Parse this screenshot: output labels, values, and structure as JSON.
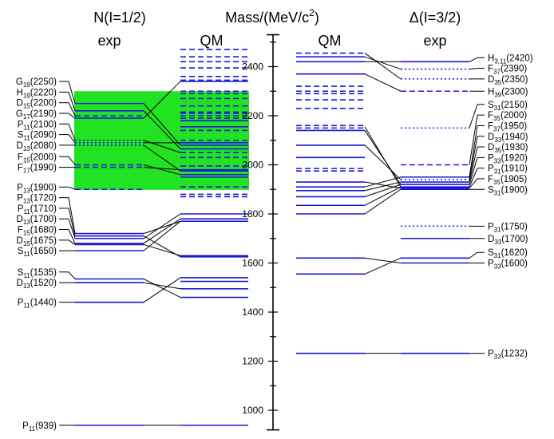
{
  "header": {
    "nucleon": "N(I=1/2)",
    "mass_prefix": "Mass/(MeV/c",
    "mass_exp": "2",
    "mass_suffix": ")",
    "delta": "Δ(I=3/2)",
    "exp_label": "exp",
    "qm_label": "QM"
  },
  "axis": {
    "unit": "MeV/c2",
    "range": [
      920,
      2530
    ],
    "major_ticks": [
      1000,
      1200,
      1400,
      1600,
      1800,
      2000,
      2200,
      2400
    ],
    "minor_step": 100,
    "tick_labels": [
      "1000",
      "1200",
      "1400",
      "1600",
      "1800",
      "2000",
      "2200",
      "2400"
    ]
  },
  "colors": {
    "level": "#1a1ad6",
    "highlight": "#22e322",
    "connector": "#000000"
  },
  "highlight_band": {
    "from": 1898,
    "to": 2300
  },
  "nucleon_states": [
    {
      "id": "n939",
      "wave": "P",
      "sub": "11",
      "mass": 939,
      "mass_label": "(939)",
      "style": "solid"
    },
    {
      "id": "n1440",
      "wave": "P",
      "sub": "11",
      "mass": 1440,
      "mass_label": "(1440)",
      "style": "solid"
    },
    {
      "id": "n1520",
      "wave": "D",
      "sub": "13",
      "mass": 1520,
      "mass_label": "(1520)",
      "style": "solid"
    },
    {
      "id": "n1535",
      "wave": "S",
      "sub": "11",
      "mass": 1535,
      "mass_label": "(1535)",
      "style": "solid"
    },
    {
      "id": "n1650",
      "wave": "S",
      "sub": "11",
      "mass": 1650,
      "mass_label": "(1650)",
      "style": "solid"
    },
    {
      "id": "n1675",
      "wave": "D",
      "sub": "15",
      "mass": 1675,
      "mass_label": "(1675)",
      "style": "solid"
    },
    {
      "id": "n1680",
      "wave": "F",
      "sub": "15",
      "mass": 1680,
      "mass_label": "(1680)",
      "style": "solid"
    },
    {
      "id": "n1700",
      "wave": "D",
      "sub": "13",
      "mass": 1700,
      "mass_label": "(1700)",
      "style": "solid"
    },
    {
      "id": "n1710",
      "wave": "P",
      "sub": "11",
      "mass": 1710,
      "mass_label": "(1710)",
      "style": "solid"
    },
    {
      "id": "n1720",
      "wave": "P",
      "sub": "13",
      "mass": 1720,
      "mass_label": "(1720)",
      "style": "solid"
    },
    {
      "id": "n1900",
      "wave": "P",
      "sub": "13",
      "mass": 1900,
      "mass_label": "(1900)",
      "style": "dashed"
    },
    {
      "id": "n1990",
      "wave": "F",
      "sub": "17",
      "mass": 1990,
      "mass_label": "(1990)",
      "style": "dashed"
    },
    {
      "id": "n2000",
      "wave": "F",
      "sub": "15",
      "mass": 2000,
      "mass_label": "(2000)",
      "style": "dashed"
    },
    {
      "id": "n2080",
      "wave": "D",
      "sub": "13",
      "mass": 2080,
      "mass_label": "(2080)",
      "style": "dotted"
    },
    {
      "id": "n2090",
      "wave": "S",
      "sub": "11",
      "mass": 2090,
      "mass_label": "(2090)",
      "style": "dotted"
    },
    {
      "id": "n2100",
      "wave": "P",
      "sub": "11",
      "mass": 2100,
      "mass_label": "(2100)",
      "style": "dotted"
    },
    {
      "id": "n2190",
      "wave": "G",
      "sub": "17",
      "mass": 2190,
      "mass_label": "(2190)",
      "style": "solid"
    },
    {
      "id": "n2200",
      "wave": "D",
      "sub": "15",
      "mass": 2200,
      "mass_label": "(2200)",
      "style": "dashed"
    },
    {
      "id": "n2220",
      "wave": "H",
      "sub": "19",
      "mass": 2220,
      "mass_label": "(2220)",
      "style": "solid"
    },
    {
      "id": "n2250",
      "wave": "G",
      "sub": "19",
      "mass": 2250,
      "mass_label": "(2250)",
      "style": "solid"
    }
  ],
  "nucleon_qm": [
    {
      "mass": 939,
      "style": "solid"
    },
    {
      "mass": 1460,
      "style": "solid"
    },
    {
      "mass": 1495,
      "style": "solid"
    },
    {
      "mass": 1525,
      "style": "solid"
    },
    {
      "mass": 1540,
      "style": "solid"
    },
    {
      "mass": 1625,
      "style": "solid"
    },
    {
      "mass": 1630,
      "style": "solid"
    },
    {
      "mass": 1770,
      "style": "solid"
    },
    {
      "mass": 1780,
      "style": "solid"
    },
    {
      "mass": 1800,
      "style": "solid"
    },
    {
      "mass": 1870,
      "style": "dashed"
    },
    {
      "mass": 1880,
      "style": "dashed"
    },
    {
      "mass": 1910,
      "style": "dashed"
    },
    {
      "mass": 1950,
      "style": "solid"
    },
    {
      "mass": 1960,
      "style": "solid"
    },
    {
      "mass": 1975,
      "style": "solid"
    },
    {
      "mass": 1980,
      "style": "solid"
    },
    {
      "mass": 1995,
      "style": "dashed"
    },
    {
      "mass": 2030,
      "style": "dashed"
    },
    {
      "mass": 2050,
      "style": "dashed"
    },
    {
      "mass": 2065,
      "style": "solid"
    },
    {
      "mass": 2080,
      "style": "solid"
    },
    {
      "mass": 2090,
      "style": "solid"
    },
    {
      "mass": 2100,
      "style": "dashed"
    },
    {
      "mass": 2140,
      "style": "dashed"
    },
    {
      "mass": 2155,
      "style": "solid"
    },
    {
      "mass": 2180,
      "style": "solid"
    },
    {
      "mass": 2190,
      "style": "dashed"
    },
    {
      "mass": 2200,
      "style": "dashed"
    },
    {
      "mass": 2210,
      "style": "dashed"
    },
    {
      "mass": 2215,
      "style": "dashed"
    },
    {
      "mass": 2240,
      "style": "dashed"
    },
    {
      "mass": 2270,
      "style": "dashed"
    },
    {
      "mass": 2290,
      "style": "dashed"
    },
    {
      "mass": 2300,
      "style": "dashed"
    },
    {
      "mass": 2340,
      "style": "solid"
    },
    {
      "mass": 2345,
      "style": "dashed"
    },
    {
      "mass": 2360,
      "style": "dashed"
    },
    {
      "mass": 2395,
      "style": "dashed"
    },
    {
      "mass": 2420,
      "style": "dashed"
    },
    {
      "mass": 2440,
      "style": "dashed"
    },
    {
      "mass": 2470,
      "style": "dashed"
    }
  ],
  "nucleon_links": [
    [
      939,
      939
    ],
    [
      1440,
      1540
    ],
    [
      1520,
      1495
    ],
    [
      1535,
      1460
    ],
    [
      1650,
      1770
    ],
    [
      1675,
      1630
    ],
    [
      1680,
      1780
    ],
    [
      1700,
      1800
    ],
    [
      1710,
      1625
    ],
    [
      1720,
      1770
    ],
    [
      2190,
      2340
    ],
    [
      2220,
      2065
    ],
    [
      2250,
      2080
    ],
    [
      2100,
      2050
    ],
    [
      2090,
      2090
    ],
    [
      2080,
      1975
    ],
    [
      2000,
      1960
    ],
    [
      1990,
      1980
    ]
  ],
  "delta_qm": [
    {
      "mass": 1232,
      "style": "solid"
    },
    {
      "mass": 1555,
      "style": "solid"
    },
    {
      "mass": 1620,
      "style": "solid"
    },
    {
      "mass": 1800,
      "style": "solid"
    },
    {
      "mass": 1835,
      "style": "solid"
    },
    {
      "mass": 1870,
      "style": "solid"
    },
    {
      "mass": 1895,
      "style": "solid"
    },
    {
      "mass": 1910,
      "style": "solid"
    },
    {
      "mass": 1930,
      "style": "solid"
    },
    {
      "mass": 1975,
      "style": "dashed"
    },
    {
      "mass": 1985,
      "style": "dashed"
    },
    {
      "mass": 2030,
      "style": "solid"
    },
    {
      "mass": 2080,
      "style": "solid"
    },
    {
      "mass": 2140,
      "style": "solid"
    },
    {
      "mass": 2150,
      "style": "dashed"
    },
    {
      "mass": 2160,
      "style": "dashed"
    },
    {
      "mass": 2230,
      "style": "dashed"
    },
    {
      "mass": 2265,
      "style": "dashed"
    },
    {
      "mass": 2290,
      "style": "dashed"
    },
    {
      "mass": 2300,
      "style": "dashed"
    },
    {
      "mass": 2320,
      "style": "dashed"
    },
    {
      "mass": 2370,
      "style": "solid"
    },
    {
      "mass": 2420,
      "style": "solid"
    },
    {
      "mass": 2440,
      "style": "solid"
    },
    {
      "mass": 2455,
      "style": "dashed"
    }
  ],
  "delta_states": [
    {
      "id": "d1232",
      "wave": "P",
      "sub": "33",
      "mass": 1232,
      "mass_label": "(1232)",
      "style": "solid"
    },
    {
      "id": "d1600",
      "wave": "P",
      "sub": "33",
      "mass": 1600,
      "mass_label": "(1600)",
      "style": "solid"
    },
    {
      "id": "d1620",
      "wave": "S",
      "sub": "31",
      "mass": 1620,
      "mass_label": "(1620)",
      "style": "solid"
    },
    {
      "id": "d1700",
      "wave": "D",
      "sub": "33",
      "mass": 1700,
      "mass_label": "(1700)",
      "style": "solid"
    },
    {
      "id": "d1750",
      "wave": "P",
      "sub": "31",
      "mass": 1750,
      "mass_label": "(1750)",
      "style": "dotted"
    },
    {
      "id": "d1900",
      "wave": "S",
      "sub": "31",
      "mass": 1900,
      "mass_label": "(1900)",
      "style": "solid"
    },
    {
      "id": "d1905",
      "wave": "F",
      "sub": "35",
      "mass": 1905,
      "mass_label": "(1905)",
      "style": "solid"
    },
    {
      "id": "d1910",
      "wave": "P",
      "sub": "31",
      "mass": 1910,
      "mass_label": "(1910)",
      "style": "solid"
    },
    {
      "id": "d1920",
      "wave": "P",
      "sub": "33",
      "mass": 1920,
      "mass_label": "(1920)",
      "style": "solid"
    },
    {
      "id": "d1930",
      "wave": "D",
      "sub": "35",
      "mass": 1930,
      "mass_label": "(1930)",
      "style": "solid"
    },
    {
      "id": "d1940",
      "wave": "D",
      "sub": "33",
      "mass": 1940,
      "mass_label": "(1940)",
      "style": "dotted"
    },
    {
      "id": "d1950",
      "wave": "F",
      "sub": "37",
      "mass": 1950,
      "mass_label": "(1950)",
      "style": "solid"
    },
    {
      "id": "d2000",
      "wave": "F",
      "sub": "35",
      "mass": 2000,
      "mass_label": "(2000)",
      "style": "dashed"
    },
    {
      "id": "d2150",
      "wave": "S",
      "sub": "31",
      "mass": 2150,
      "mass_label": "(2150)",
      "style": "dotted"
    },
    {
      "id": "d2300",
      "wave": "H",
      "sub": "39",
      "mass": 2300,
      "mass_label": "(2300)",
      "style": "dashed"
    },
    {
      "id": "d2350",
      "wave": "D",
      "sub": "35",
      "mass": 2350,
      "mass_label": "(2350)",
      "style": "dotted"
    },
    {
      "id": "d2390",
      "wave": "F",
      "sub": "37",
      "mass": 2390,
      "mass_label": "(2390)",
      "style": "dotted"
    },
    {
      "id": "d2420",
      "wave": "H",
      "sub": "3,11",
      "mass": 2420,
      "mass_label": "(2420)",
      "style": "solid"
    }
  ],
  "delta_links": [
    [
      1232,
      1232
    ],
    [
      1555,
      1620
    ],
    [
      1620,
      1600
    ],
    [
      1800,
      1900
    ],
    [
      1835,
      1910
    ],
    [
      1870,
      1920
    ],
    [
      1895,
      1930
    ],
    [
      1910,
      1950
    ],
    [
      1930,
      1905
    ],
    [
      2080,
      1940
    ],
    [
      2140,
      1920
    ],
    [
      2155,
      1910
    ],
    [
      2420,
      2420
    ],
    [
      2440,
      2390
    ],
    [
      2370,
      2300
    ],
    [
      2455,
      2350
    ]
  ]
}
